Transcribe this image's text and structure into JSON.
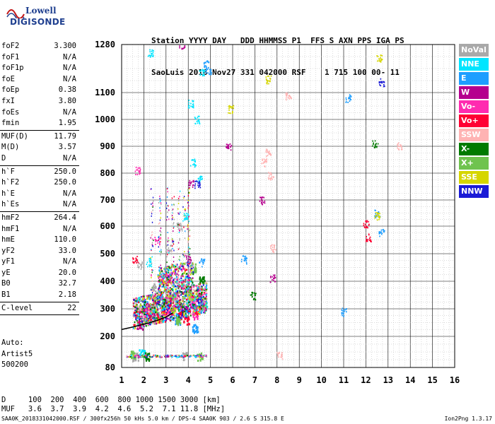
{
  "logo": {
    "line1": "Lowell",
    "line2": "DIGISONDE"
  },
  "header": {
    "labels": "Station YYYY DAY   DDD HHMMSS P1  FFS S AXN PPS IGA PS",
    "values": "SaoLuis 2018 Nov27 331 042000 RSF    1 715 100 00- 11"
  },
  "params": {
    "g1": [
      {
        "label": "foF2",
        "value": "3.300"
      },
      {
        "label": "foF1",
        "value": "N/A"
      },
      {
        "label": "foF1p",
        "value": "N/A"
      },
      {
        "label": "foE",
        "value": "N/A"
      },
      {
        "label": "foEp",
        "value": "0.38"
      },
      {
        "label": "fxI",
        "value": "3.80"
      },
      {
        "label": "foEs",
        "value": "N/A"
      },
      {
        "label": "fmin",
        "value": "1.95"
      }
    ],
    "g2": [
      {
        "label": "MUF(D)",
        "value": "11.79"
      },
      {
        "label": "M(D)",
        "value": "3.57"
      },
      {
        "label": "D",
        "value": "N/A"
      }
    ],
    "g3": [
      {
        "label": "h`F",
        "value": "250.0"
      },
      {
        "label": "h`F2",
        "value": "250.0"
      },
      {
        "label": "h`E",
        "value": "N/A"
      },
      {
        "label": "h`Es",
        "value": "N/A"
      }
    ],
    "g4": [
      {
        "label": "hmF2",
        "value": "264.4"
      },
      {
        "label": "hmF1",
        "value": "N/A"
      },
      {
        "label": "hmE",
        "value": "110.0"
      },
      {
        "label": "yF2",
        "value": "33.0"
      },
      {
        "label": "yF1",
        "value": "N/A"
      },
      {
        "label": "yE",
        "value": "20.0"
      },
      {
        "label": "B0",
        "value": "32.7"
      },
      {
        "label": "B1",
        "value": "2.18"
      }
    ],
    "g5": [
      {
        "label": "C-level",
        "value": "22"
      }
    ]
  },
  "artist": {
    "line1": "Auto:",
    "line2": "Artist5",
    "line3": "500200"
  },
  "legend": [
    {
      "label": "NoVal",
      "color": "#a9a9a9"
    },
    {
      "label": "NNE",
      "color": "#00e5ff"
    },
    {
      "label": "E",
      "color": "#1e9eff"
    },
    {
      "label": "W",
      "color": "#b5008e"
    },
    {
      "label": "Vo-",
      "color": "#ff2bb0"
    },
    {
      "label": "Vo+",
      "color": "#ff0033"
    },
    {
      "label": "SSW",
      "color": "#ffb3b3"
    },
    {
      "label": "X-",
      "color": "#007a00"
    },
    {
      "label": "X+",
      "color": "#6fc34f"
    },
    {
      "label": "SSE",
      "color": "#d6d600"
    },
    {
      "label": "NNW",
      "color": "#1a1ad6"
    }
  ],
  "chart_data": {
    "type": "scatter",
    "title": "",
    "xlabel": "",
    "ylabel": "",
    "xlim": [
      1,
      16
    ],
    "ylim": [
      80,
      1280
    ],
    "x_ticks": [
      "1",
      "2",
      "3",
      "4",
      "5",
      "6",
      "7",
      "8",
      "9",
      "10",
      "11",
      "12",
      "13",
      "14",
      "15",
      "16"
    ],
    "y_ticks": [
      "80",
      "200",
      "300",
      "400",
      "500",
      "600",
      "700",
      "800",
      "900",
      "1000",
      "1100",
      "1280"
    ],
    "y_scale": "mixed-linear",
    "grid": true,
    "profile_line": {
      "x": [
        1.0,
        1.4,
        1.8,
        2.2,
        2.6,
        3.0,
        3.3
      ],
      "y": [
        225,
        232,
        240,
        248,
        258,
        270,
        285
      ]
    },
    "series": [
      {
        "name": "NoVal",
        "color": "#a9a9a9",
        "points": [
          [
            1.8,
            460
          ],
          [
            2.4,
            380
          ],
          [
            3.1,
            520
          ],
          [
            3.6,
            600
          ],
          [
            2.9,
            330
          ],
          [
            4.3,
            300
          ],
          [
            1.6,
            123
          ],
          [
            3.8,
            125
          ]
        ]
      },
      {
        "name": "NNE",
        "color": "#00e5ff",
        "points": [
          [
            2.3,
            1250
          ],
          [
            4.6,
            1180
          ],
          [
            4.1,
            1060
          ],
          [
            4.4,
            1000
          ],
          [
            4.2,
            840
          ],
          [
            4.5,
            780
          ],
          [
            3.9,
            640
          ],
          [
            2.2,
            470
          ],
          [
            4.0,
            330
          ],
          [
            1.9,
            140
          ],
          [
            4.7,
            310
          ]
        ]
      },
      {
        "name": "E",
        "color": "#1e9eff",
        "points": [
          [
            4.8,
            1210
          ],
          [
            6.5,
            480
          ],
          [
            11.0,
            290
          ],
          [
            12.5,
            650
          ],
          [
            12.7,
            580
          ],
          [
            11.2,
            1080
          ],
          [
            4.9,
            1185
          ],
          [
            2.7,
            350
          ],
          [
            3.5,
            260
          ],
          [
            4.3,
            230
          ],
          [
            4.6,
            470
          ]
        ]
      },
      {
        "name": "W",
        "color": "#b5008e",
        "points": [
          [
            3.7,
            1280
          ],
          [
            5.8,
            900
          ],
          [
            7.3,
            700
          ],
          [
            7.8,
            410
          ],
          [
            4.0,
            480
          ],
          [
            2.8,
            410
          ],
          [
            3.2,
            300
          ],
          [
            1.8,
            240
          ],
          [
            4.1,
            760
          ],
          [
            2.1,
            300
          ]
        ]
      },
      {
        "name": "Vo-",
        "color": "#ff2bb0",
        "points": [
          [
            2.5,
            320
          ],
          [
            3.0,
            290
          ],
          [
            3.7,
            300
          ],
          [
            4.2,
            320
          ],
          [
            2.2,
            290
          ],
          [
            3.4,
            350
          ],
          [
            1.7,
            810
          ],
          [
            2.6,
            550
          ],
          [
            3.1,
            420
          ],
          [
            4.3,
            280
          ]
        ]
      },
      {
        "name": "Vo+",
        "color": "#ff0033",
        "points": [
          [
            2.9,
            300
          ],
          [
            3.6,
            280
          ],
          [
            4.4,
            300
          ],
          [
            2.3,
            270
          ],
          [
            3.1,
            330
          ],
          [
            12.0,
            610
          ],
          [
            12.1,
            560
          ],
          [
            3.9,
            260
          ],
          [
            2.7,
            265
          ],
          [
            1.6,
            480
          ]
        ]
      },
      {
        "name": "SSW",
        "color": "#ffb3b3",
        "points": [
          [
            7.6,
            880
          ],
          [
            7.7,
            790
          ],
          [
            8.5,
            1090
          ],
          [
            13.5,
            900
          ],
          [
            7.4,
            840
          ],
          [
            7.8,
            520
          ],
          [
            8.1,
            127
          ]
        ]
      },
      {
        "name": "X-",
        "color": "#007a00",
        "points": [
          [
            6.9,
            350
          ],
          [
            12.4,
            910
          ],
          [
            2.9,
            320
          ],
          [
            3.6,
            310
          ],
          [
            4.6,
            410
          ],
          [
            2.1,
            125
          ]
        ]
      },
      {
        "name": "X+",
        "color": "#6fc34f",
        "points": [
          [
            3.2,
            340
          ],
          [
            4.0,
            370
          ],
          [
            2.4,
            300
          ],
          [
            3.5,
            260
          ],
          [
            4.2,
            450
          ],
          [
            1.5,
            130
          ],
          [
            4.5,
            124
          ]
        ]
      },
      {
        "name": "SSE",
        "color": "#d6d600",
        "points": [
          [
            5.9,
            1040
          ],
          [
            7.6,
            1150
          ],
          [
            12.6,
            1230
          ],
          [
            3.3,
            300
          ],
          [
            2.5,
            280
          ],
          [
            4.1,
            350
          ],
          [
            12.5,
            640
          ]
        ]
      },
      {
        "name": "NNW",
        "color": "#1a1ad6",
        "points": [
          [
            12.7,
            1140
          ],
          [
            3.0,
            310
          ],
          [
            2.6,
            330
          ],
          [
            3.8,
            290
          ],
          [
            4.5,
            330
          ],
          [
            2.0,
            270
          ],
          [
            4.4,
            760
          ]
        ]
      }
    ],
    "band_80": {
      "x_from": 1.2,
      "x_to": 4.8,
      "y": 126
    }
  },
  "bottom": {
    "d_row": "D     100  200  400  600  800 1000 1500 3000 [km]",
    "muf_row": "MUF   3.6  3.7  3.9  4.2  4.6  5.2  7.1 11.8 [MHz]"
  },
  "footer": {
    "left": "SAA0K_2018331042000.RSF / 300fx256h 50 kHs 5.0 km / DPS-4 SAA0K 903 / 2.6 S 315.8 E",
    "right": "Ion2Png 1.3.17"
  }
}
